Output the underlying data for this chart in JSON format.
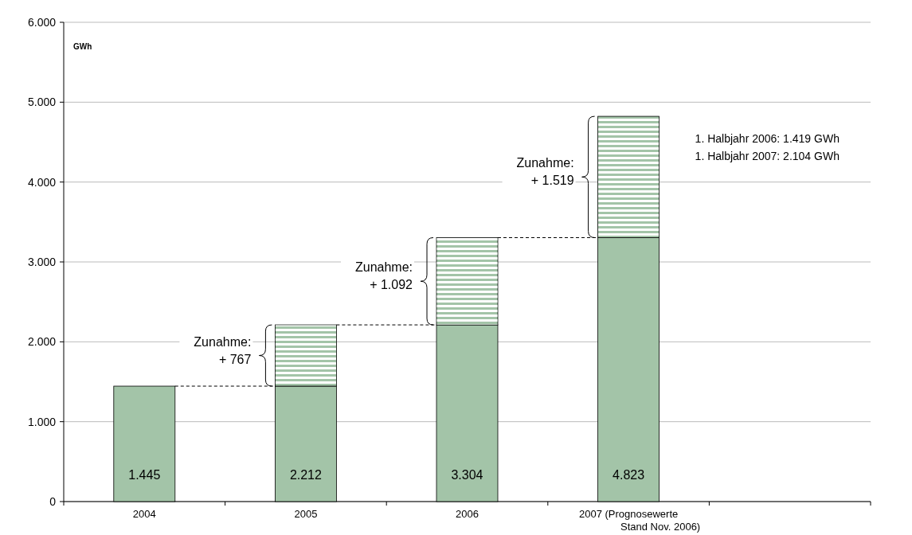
{
  "chart_data": {
    "type": "bar",
    "stacked": true,
    "ylabel": "GWh",
    "categories": [
      "2004",
      "2005",
      "2006",
      "2007 (Prognosewerte\nStand Nov. 2006)",
      null
    ],
    "series": [
      {
        "color": "#a3c4a8",
        "values": [
          1445,
          1445,
          2212,
          3304,
          null
        ]
      },
      {
        "color": "#a3c4a8",
        "values": [
          null,
          767,
          1092,
          1519,
          null
        ]
      }
    ],
    "totals": [
      "1.445",
      "2.212",
      "3.304",
      "4.823",
      null
    ],
    "ylim": [
      0,
      6000
    ],
    "yticks": [
      {
        "value": 0,
        "label": "0"
      },
      {
        "value": 1000,
        "label": "1.000"
      },
      {
        "value": 2000,
        "label": "2.000"
      },
      {
        "value": 3000,
        "label": "3.000"
      },
      {
        "value": 4000,
        "label": "4.000"
      },
      {
        "value": 5000,
        "label": "5.000"
      },
      {
        "value": 6000,
        "label": "6.000"
      }
    ],
    "grid": "y",
    "annotations": [
      "Zunahme:\n+ 767",
      "Zunahme:\n+ 1.092",
      "Zunahme:\n+ 1.519",
      "1. Halbjahr 2006: 1.419 GWh\n1. Halbjahr 2007: 2.104 GWh"
    ]
  }
}
